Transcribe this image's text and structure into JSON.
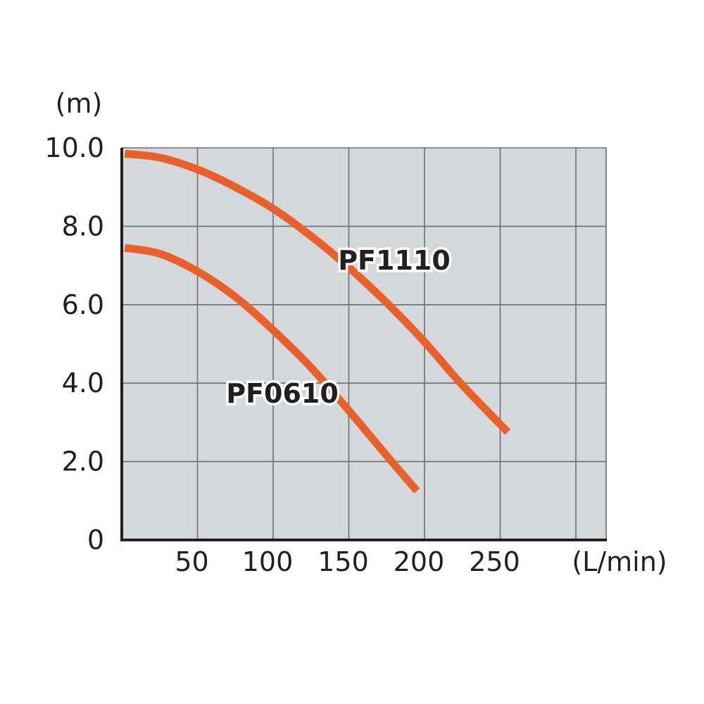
{
  "chart_data": {
    "type": "line",
    "title": "",
    "ylabel": "(m)",
    "xlabel": "(L/min)",
    "xlim": [
      0,
      320
    ],
    "ylim": [
      0,
      10
    ],
    "grid": true,
    "y_ticks": [
      {
        "value": 0,
        "label": "0"
      },
      {
        "value": 2,
        "label": "2.0"
      },
      {
        "value": 4,
        "label": "4.0"
      },
      {
        "value": 6,
        "label": "6.0"
      },
      {
        "value": 8,
        "label": "8.0"
      },
      {
        "value": 10,
        "label": "10.0"
      }
    ],
    "x_ticks": [
      {
        "value": 50,
        "label": "50"
      },
      {
        "value": 100,
        "label": "100"
      },
      {
        "value": 150,
        "label": "150"
      },
      {
        "value": 200,
        "label": "200"
      },
      {
        "value": 250,
        "label": "250"
      }
    ],
    "x_grid": [
      50,
      100,
      150,
      200,
      250,
      300
    ],
    "y_grid": [
      2,
      4,
      6,
      8,
      10
    ],
    "series": [
      {
        "name": "PF1110",
        "color": "#e8602c",
        "x": [
          2,
          25,
          50,
          75,
          100,
          125,
          150,
          175,
          200,
          225,
          255
        ],
        "y": [
          9.85,
          9.75,
          9.45,
          9.0,
          8.45,
          7.75,
          6.95,
          6.05,
          5.05,
          3.95,
          2.75
        ]
      },
      {
        "name": "PF0610",
        "color": "#e8602c",
        "x": [
          2,
          25,
          50,
          75,
          100,
          125,
          150,
          175,
          195
        ],
        "y": [
          7.45,
          7.3,
          6.85,
          6.2,
          5.35,
          4.4,
          3.3,
          2.15,
          1.25
        ]
      }
    ]
  }
}
